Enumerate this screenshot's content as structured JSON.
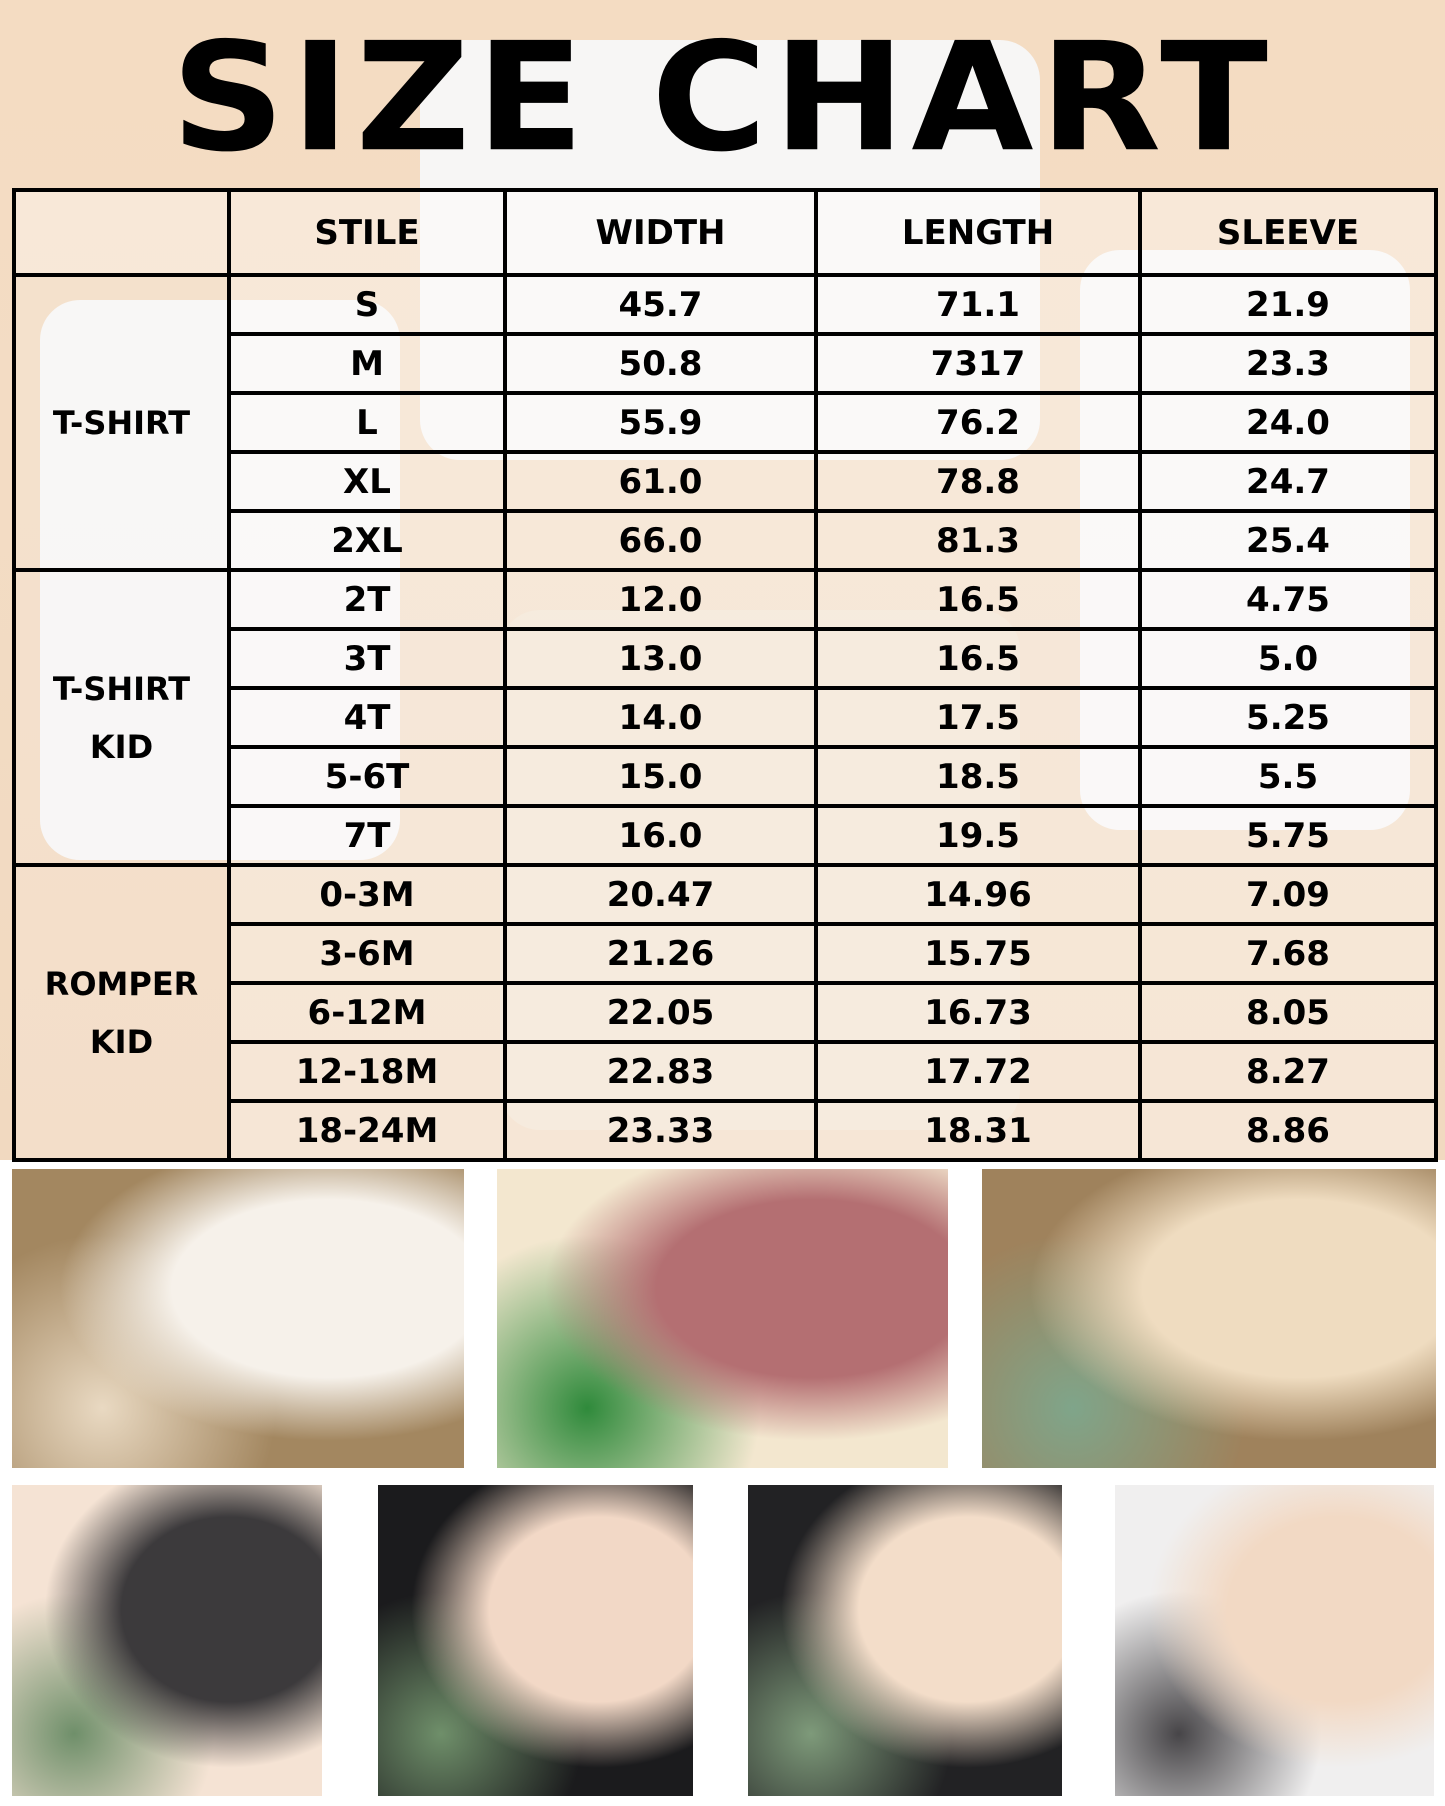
{
  "title": "SIZE CHART",
  "headers": [
    "",
    "STILE",
    "WIDTH",
    "LENGTH",
    "SLEEVE"
  ],
  "groups": [
    {
      "label_lines": [
        "T-SHIRT"
      ],
      "rows": [
        [
          "S",
          "45.7",
          "71.1",
          "21.9"
        ],
        [
          "M",
          "50.8",
          "7317",
          "23.3"
        ],
        [
          "L",
          "55.9",
          "76.2",
          "24.0"
        ],
        [
          "XL",
          "61.0",
          "78.8",
          "24.7"
        ],
        [
          "2XL",
          "66.0",
          "81.3",
          "25.4"
        ]
      ]
    },
    {
      "label_lines": [
        "T-SHIRT",
        "KID"
      ],
      "rows": [
        [
          "2T",
          "12.0",
          "16.5",
          "4.75"
        ],
        [
          "3T",
          "13.0",
          "16.5",
          "5.0"
        ],
        [
          "4T",
          "14.0",
          "17.5",
          "5.25"
        ],
        [
          "5-6T",
          "15.0",
          "18.5",
          "5.5"
        ],
        [
          "7T",
          "16.0",
          "19.5",
          "5.75"
        ]
      ]
    },
    {
      "label_lines": [
        "ROMPER",
        "KID"
      ],
      "rows": [
        [
          "0-3M",
          "20.47",
          "14.96",
          "7.09"
        ],
        [
          "3-6M",
          "21.26",
          "15.75",
          "7.68"
        ],
        [
          "6-12M",
          "22.05",
          "16.73",
          "8.05"
        ],
        [
          "12-18M",
          "22.83",
          "17.72",
          "8.27"
        ],
        [
          "18-24M",
          "23.33",
          "18.31",
          "8.86"
        ]
      ]
    }
  ],
  "photos": [
    {
      "name": "photo-rainbow-tshirt",
      "colors": [
        "#a38760",
        "#f6f1ea",
        "#e9d9c2"
      ]
    },
    {
      "name": "photo-rompers-shamrock",
      "colors": [
        "#f3e7cf",
        "#b46f72",
        "#2f8a3b"
      ]
    },
    {
      "name": "photo-beige-tshirt-rainbow",
      "colors": [
        "#9f825c",
        "#efdcc0",
        "#7fa58a"
      ]
    },
    {
      "name": "photo-eucalyptus-1",
      "colors": [
        "#f5e3d4",
        "#3c3a3c",
        "#6f8f6a"
      ]
    },
    {
      "name": "photo-eucalyptus-2",
      "colors": [
        "#1b1b1d",
        "#f2d8c6",
        "#6f8f6a"
      ]
    },
    {
      "name": "photo-eucalyptus-3",
      "colors": [
        "#222224",
        "#f3ddc9",
        "#7e9a7a"
      ]
    },
    {
      "name": "photo-eucalyptus-4",
      "colors": [
        "#f0efef",
        "#f2d9c4",
        "#474548"
      ]
    }
  ]
}
